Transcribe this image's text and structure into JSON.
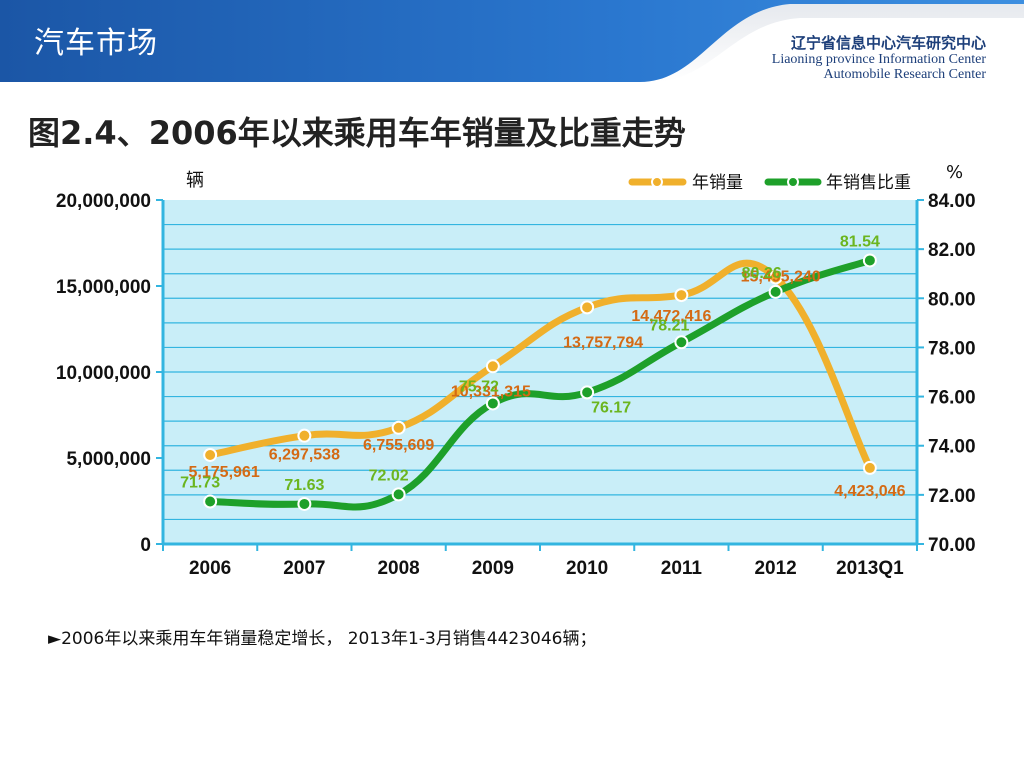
{
  "header": {
    "section_title": "汽车市场",
    "org_cn": "辽宁省信息中心汽车研究中心",
    "org_en_line1": "Liaoning province Information Center",
    "org_en_line2": "Automobile Research Center"
  },
  "figure_title": "图2.4、2006年以来乘用车年销量及比重走势",
  "bullet": "►2006年以来乘用车年销量稳定增长， 2013年1-3月销售4423046辆；",
  "colors": {
    "header_blue": "#1f5fb3",
    "sales_line": "#f0b02c",
    "share_line": "#1ea02a",
    "sales_label": "#d46a14",
    "share_label": "#6bb51f",
    "plot_bg": "#c9eef8",
    "axis_blue": "#33b5e0"
  },
  "chart_data": {
    "type": "line",
    "categories": [
      "2006",
      "2007",
      "2008",
      "2009",
      "2010",
      "2011",
      "2012",
      "2013Q1"
    ],
    "series": [
      {
        "name": "年销量",
        "axis": "left",
        "values": [
          5175961,
          6297538,
          6755609,
          10331315,
          13757794,
          14472416,
          15495240,
          4423046
        ],
        "labels": [
          "5,175,961",
          "6,297,538",
          "6,755,609",
          "10,331,315",
          "13,757,794",
          "14,472,416",
          "15,495,240",
          "4,423,046"
        ]
      },
      {
        "name": "年销售比重",
        "axis": "right",
        "values": [
          71.73,
          71.63,
          72.02,
          75.72,
          76.17,
          78.21,
          80.26,
          81.54
        ],
        "labels": [
          "71.73",
          "71.63",
          "72.02",
          "75.72",
          "76.17",
          "78.21",
          "80.26",
          "81.54"
        ]
      }
    ],
    "left_axis": {
      "unit": "辆",
      "ylim": [
        0,
        20000000
      ],
      "ticks": [
        0,
        5000000,
        10000000,
        15000000,
        20000000
      ],
      "tick_labels": [
        "0",
        "5,000,000",
        "10,000,000",
        "15,000,000",
        "20,000,000"
      ]
    },
    "right_axis": {
      "unit": "%",
      "ylim": [
        70,
        84
      ],
      "ticks": [
        70,
        72,
        74,
        76,
        78,
        80,
        82,
        84
      ],
      "tick_labels": [
        "70.00",
        "72.00",
        "74.00",
        "76.00",
        "78.00",
        "80.00",
        "82.00",
        "84.00"
      ]
    },
    "grid": true,
    "legend_position": "top-right"
  }
}
